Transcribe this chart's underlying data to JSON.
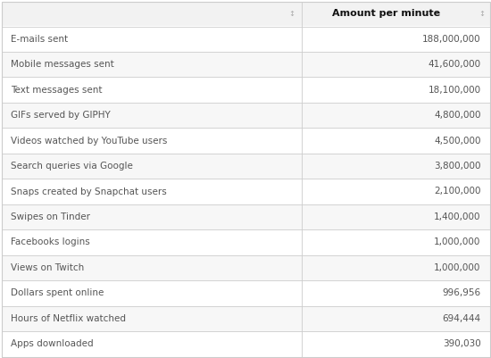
{
  "rows": [
    [
      "E-mails sent",
      "188,000,000"
    ],
    [
      "Mobile messages sent",
      "41,600,000"
    ],
    [
      "Text messages sent",
      "18,100,000"
    ],
    [
      "GIFs served by GIPHY",
      "4,800,000"
    ],
    [
      "Videos watched by YouTube users",
      "4,500,000"
    ],
    [
      "Search queries via Google",
      "3,800,000"
    ],
    [
      "Snaps created by Snapchat users",
      "2,100,000"
    ],
    [
      "Swipes on Tinder",
      "1,400,000"
    ],
    [
      "Facebooks logins",
      "1,000,000"
    ],
    [
      "Views on Twitch",
      "1,000,000"
    ],
    [
      "Dollars spent online",
      "996,956"
    ],
    [
      "Hours of Netflix watched",
      "694,444"
    ],
    [
      "Apps downloaded",
      "390,030"
    ]
  ],
  "col2_header_label": "Amount per minute",
  "header_bg": "#f2f2f2",
  "row_bg_even": "#ffffff",
  "row_bg_odd": "#f7f7f7",
  "border_color": "#cccccc",
  "header_text_color": "#111111",
  "row_text_color": "#555555",
  "header_fontsize": 8.0,
  "row_fontsize": 7.5,
  "sort_arrow_color": "#aaaaaa",
  "col_split": 0.615,
  "fig_width": 5.5,
  "fig_height": 4.01,
  "dpi": 100
}
